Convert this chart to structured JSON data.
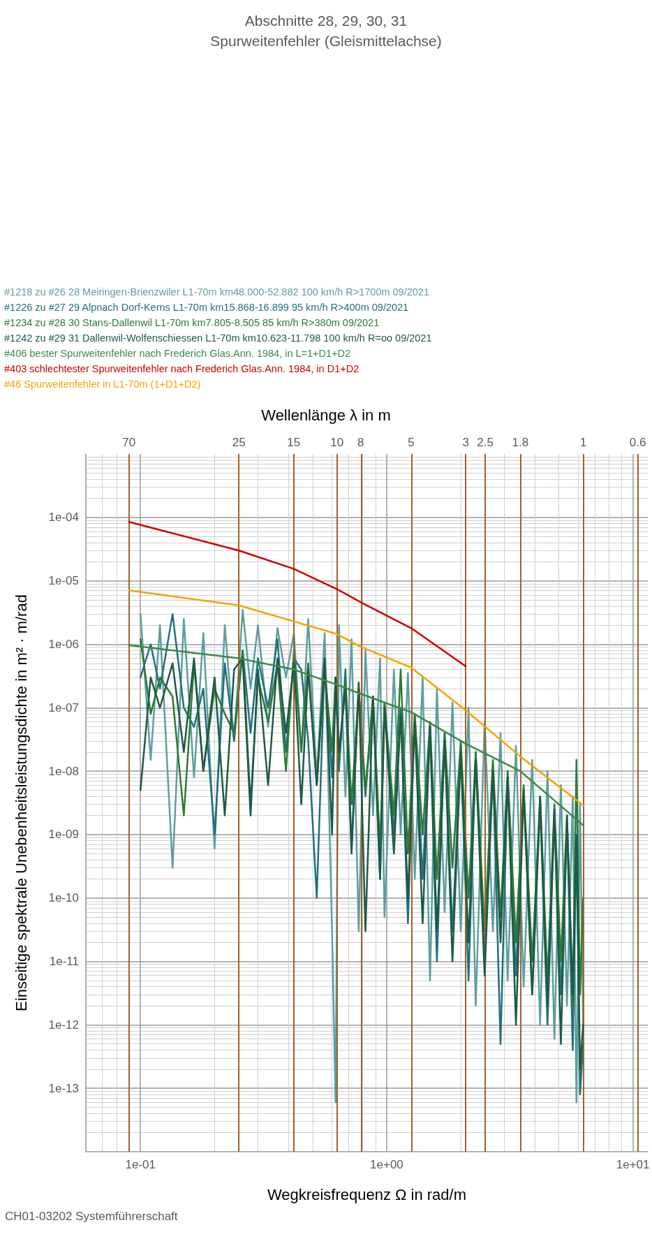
{
  "chart_data": {
    "type": "line",
    "title": "Abschnitte 28, 29, 30, 31",
    "subtitle": "Spurweitenfehler (Gleismittelachse)",
    "xlabel": "Wegkreisfrequenz Ω in rad/m",
    "x2label": "Wellenlänge λ in m",
    "ylabel": "Einseitige spektrale Unebenheitsleistungsdichte in m² · m/rad",
    "annotations": [
      "CH01-03202 Systemführerschaft",
      {
        "text": "70",
        "x": 0.0898,
        "y": 0.001
      },
      {
        "text": "25",
        "x": 0.251,
        "y": 0.001
      },
      {
        "text": "15",
        "x": 0.419,
        "y": 0.001
      },
      {
        "text": "10",
        "x": 0.628,
        "y": 0.001
      },
      {
        "text": "8",
        "x": 0.785,
        "y": 0.001
      },
      {
        "text": "5",
        "x": 1.257,
        "y": 0.001
      },
      {
        "text": "3",
        "x": 2.094,
        "y": 0.001
      },
      {
        "text": "2.5",
        "x": 2.513,
        "y": 0.001
      },
      {
        "text": "1.8",
        "x": 3.491,
        "y": 0.001
      },
      {
        "text": "1",
        "x": 6.283,
        "y": 0.001
      },
      {
        "text": "0.6",
        "x": 10.47,
        "y": 0.001
      }
    ],
    "log": "xy",
    "grid": true,
    "legend": "top left",
    "marker": "none",
    "line_style": "solid",
    "xlim": [
      0.06,
      11.5
    ],
    "xticks": [
      {
        "value": 0.1,
        "label": "1e-01"
      },
      {
        "value": 1,
        "label": "1e+00"
      },
      {
        "value": 10,
        "label": "1e+01"
      }
    ],
    "ref_lines": [
      {
        "axis": "x",
        "value": 0.0898,
        "color": "#a0622a"
      },
      {
        "axis": "x",
        "value": 0.251,
        "color": "#a0622a"
      },
      {
        "axis": "x",
        "value": 0.419,
        "color": "#a0622a"
      },
      {
        "axis": "x",
        "value": 0.628,
        "color": "#a0622a"
      },
      {
        "axis": "x",
        "value": 0.785,
        "color": "#a0622a"
      },
      {
        "axis": "x",
        "value": 1.257,
        "color": "#a0622a"
      },
      {
        "axis": "x",
        "value": 2.094,
        "color": "#a0622a"
      },
      {
        "axis": "x",
        "value": 2.513,
        "color": "#a0622a"
      },
      {
        "axis": "x",
        "value": 3.491,
        "color": "#a0622a"
      },
      {
        "axis": "x",
        "value": 6.283,
        "color": "#a0622a"
      },
      {
        "axis": "x",
        "value": 10.47,
        "color": "#a0622a"
      }
    ],
    "ylim": [
      1e-14,
      0.001
    ],
    "yticks": [
      {
        "value": 1e-13,
        "label": "1e-13"
      },
      {
        "value": 1e-12,
        "label": "1e-12"
      },
      {
        "value": 1e-11,
        "label": "1e-11"
      },
      {
        "value": 1e-10,
        "label": "1e-10"
      },
      {
        "value": 1e-09,
        "label": "1e-09"
      },
      {
        "value": 1e-08,
        "label": "1e-08"
      },
      {
        "value": 1e-07,
        "label": "1e-07"
      },
      {
        "value": 1e-06,
        "label": "1e-06"
      },
      {
        "value": 1e-05,
        "label": "1e-05"
      },
      {
        "value": 0.0001,
        "label": "1e-04"
      }
    ],
    "x": [
      0.1,
      0.11,
      0.12,
      0.135,
      0.15,
      0.165,
      0.18,
      0.2,
      0.22,
      0.24,
      0.26,
      0.28,
      0.3,
      0.33,
      0.36,
      0.39,
      0.42,
      0.45,
      0.48,
      0.52,
      0.56,
      0.6,
      0.62,
      0.64,
      0.68,
      0.72,
      0.77,
      0.82,
      0.88,
      0.94,
      0.98,
      1.07,
      1.14,
      1.22,
      1.3,
      1.4,
      1.5,
      1.6,
      1.72,
      1.85,
      2.0,
      2.15,
      2.3,
      2.5,
      2.7,
      2.9,
      3.1,
      3.35,
      3.6,
      3.9,
      4.2,
      4.5,
      4.8,
      5.1,
      5.4,
      5.7,
      5.9,
      6.1,
      6.28
    ],
    "series": [
      {
        "name": "#1218 zu #26 28 Meiringen-Brienzwiler L1-70m km48.000-52.882 100 km/h R>1700m 09/2021",
        "color": "#5f9ea0",
        "values": [
          3e-06,
          1.5e-08,
          2e-06,
          3e-10,
          2.5e-06,
          8e-09,
          1.5e-06,
          6e-10,
          2e-06,
          3e-08,
          3.5e-06,
          2e-07,
          2e-06,
          5e-08,
          1.8e-06,
          3e-07,
          1.5e-06,
          2e-08,
          2.5e-06,
          8e-09,
          1.5e-06,
          3e-11,
          6e-14,
          2e-06,
          4e-09,
          1.2e-06,
          3e-11,
          8e-07,
          2e-09,
          6e-07,
          5e-11,
          4e-07,
          1e-09,
          3.5e-07,
          2e-10,
          3e-07,
          5e-12,
          2e-07,
          6e-11,
          1.2e-07,
          3e-11,
          1e-07,
          2e-12,
          6e-08,
          3e-11,
          4e-08,
          5e-12,
          2.5e-08,
          4e-12,
          1.5e-08,
          1e-12,
          1e-08,
          6e-13,
          6e-09,
          2e-12,
          4e-09,
          6e-14,
          3e-09,
          1e-12
        ]
      },
      {
        "name": "#1226 zu #27 29 Alpnach Dorf-Kerns L1-70m km15.868-16.899 95 km/h R>400m 09/2021",
        "color": "#236f7e",
        "values": [
          3e-07,
          1e-06,
          2e-07,
          3e-06,
          1e-07,
          5e-08,
          2e-07,
          1e-09,
          5e-07,
          3e-08,
          8e-07,
          4e-08,
          6e-07,
          1e-07,
          1.2e-06,
          2e-08,
          6e-07,
          4e-07,
          3e-08,
          1e-10,
          5e-07,
          8e-09,
          3e-07,
          1e-08,
          4e-07,
          6e-10,
          2e-07,
          4e-09,
          1.5e-07,
          2e-10,
          1.2e-07,
          1e-09,
          1e-07,
          4e-11,
          8e-08,
          2e-10,
          5e-08,
          1e-11,
          4e-08,
          3e-11,
          2.5e-08,
          5e-12,
          2e-08,
          1e-11,
          1.2e-08,
          5e-13,
          8e-09,
          6e-12,
          5e-09,
          3e-12,
          3e-09,
          1e-12,
          2e-09,
          3e-12,
          1.5e-09,
          4e-13,
          1e-09,
          8e-14,
          5e-13
        ]
      },
      {
        "name": "#1234 zu #28 30 Stans-Dallenwil L1-70m km7.805-8.505 85 km/h R>380m 09/2021",
        "color": "#2d7a36",
        "values": [
          1.2e-06,
          8e-08,
          3e-07,
          1.5e-07,
          2e-09,
          5e-07,
          1e-08,
          2e-07,
          8e-08,
          4e-08,
          8e-07,
          3e-09,
          3e-07,
          6e-08,
          5e-07,
          1e-08,
          8e-07,
          2e-08,
          5e-07,
          6e-09,
          4e-07,
          2e-08,
          3e-07,
          1.5e-08,
          2.5e-07,
          3e-09,
          2e-07,
          5e-09,
          1.5e-07,
          6e-10,
          1.2e-07,
          2e-09,
          4e-07,
          5e-10,
          8e-08,
          1e-09,
          6e-08,
          2e-10,
          4e-08,
          3e-10,
          3e-08,
          1e-10,
          2e-08,
          3e-11,
          1.5e-08,
          5e-11,
          1e-08,
          2e-11,
          6e-09,
          1e-11,
          4e-09,
          5e-12,
          3e-09,
          1e-11,
          2e-09,
          2e-12,
          1.5e-08,
          3e-12,
          1e-10
        ]
      },
      {
        "name": "#1242 zu #29 31 Dallenwil-Wolfenschiessen L1-70m km10.623-11.798 100 km/h R=oo 09/2021",
        "color": "#1f5946",
        "values": [
          5e-09,
          3e-07,
          1e-07,
          5e-07,
          2e-08,
          6e-07,
          1e-08,
          3e-07,
          2e-09,
          4e-07,
          6e-07,
          2e-09,
          4e-07,
          6e-09,
          6e-07,
          4e-08,
          5e-07,
          3e-09,
          4e-07,
          6e-09,
          6e-07,
          1e-09,
          3e-07,
          2e-08,
          2e-07,
          5e-10,
          2.5e-07,
          3e-11,
          1.5e-07,
          2e-10,
          1e-07,
          5e-10,
          8e-08,
          1e-10,
          6e-08,
          4e-11,
          5e-08,
          3e-11,
          3e-08,
          1e-11,
          2e-08,
          2e-11,
          1.5e-08,
          6e-12,
          1e-08,
          2e-11,
          8e-09,
          1e-12,
          5e-09,
          3e-12,
          4e-09,
          2e-12,
          2.5e-09,
          5e-13,
          2e-09,
          3e-12,
          1e-09,
          2e-13,
          1e-12
        ]
      },
      {
        "name": "#406 bester Spurweitenfehler nach Frederich Glas.Ann. 1984, in L=1+D1+D2",
        "color": "#3a8a45",
        "x": [
          0.0898,
          0.251,
          0.419,
          0.628,
          0.785,
          1.257,
          2.094,
          3.49,
          6.283
        ],
        "values": [
          9.7e-07,
          6e-07,
          4e-07,
          2.3e-07,
          1.65e-07,
          8.5e-08,
          2.7e-08,
          1e-08,
          1.4e-09
        ]
      },
      {
        "name": "#403 schlechtester Spurweitenfehler nach Frederich Glas.Ann. 1984, in D1+D2",
        "color": "#cc0000",
        "x": [
          0.0898,
          0.251,
          0.419,
          0.628,
          0.785,
          1.257,
          2.094
        ],
        "values": [
          8.5e-05,
          3e-05,
          1.55e-05,
          7.4e-06,
          4.6e-06,
          1.8e-06,
          4.5e-07
        ]
      },
      {
        "name": "#46 Spurweitenfehler in L1-70m (1+D1+D2)",
        "color": "#f5a300",
        "x": [
          0.0898,
          0.251,
          0.419,
          0.628,
          0.785,
          1.257,
          2.094,
          3.49,
          6.283
        ],
        "values": [
          7.1e-06,
          4.1e-06,
          2.3e-06,
          1.45e-06,
          9.1e-07,
          4.3e-07,
          9.1e-08,
          1.7e-08,
          2.9e-09
        ]
      }
    ]
  }
}
